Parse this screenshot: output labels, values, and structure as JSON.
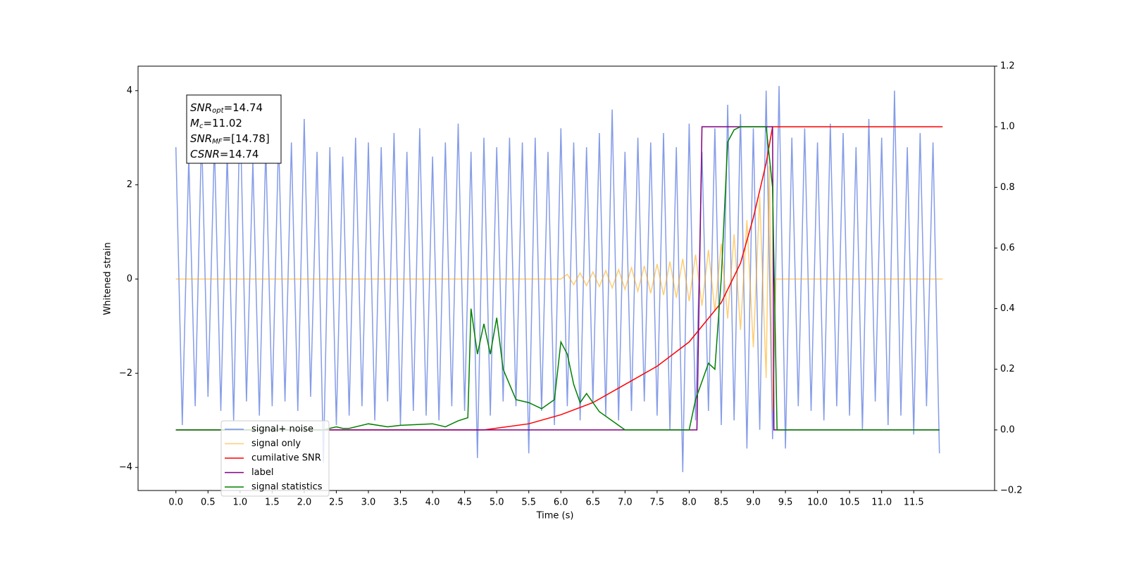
{
  "chart_data": {
    "type": "line",
    "xlabel": "Time (s)",
    "ylabel": "Whitened strain",
    "xlim": [
      -0.59,
      12.76
    ],
    "ylim": [
      -4.49,
      4.52
    ],
    "y2lim": [
      -0.2,
      1.2
    ],
    "xticks": [
      {
        "value": 0,
        "label": "0.0"
      },
      {
        "value": 0.5,
        "label": "0.5"
      },
      {
        "value": 1,
        "label": "1.0"
      },
      {
        "value": 1.5,
        "label": "1.5"
      },
      {
        "value": 2,
        "label": "2.0"
      },
      {
        "value": 2.5,
        "label": "2.5"
      },
      {
        "value": 3,
        "label": "3.0"
      },
      {
        "value": 3.5,
        "label": "3.5"
      },
      {
        "value": 4,
        "label": "4.0"
      },
      {
        "value": 4.5,
        "label": "4.5"
      },
      {
        "value": 5,
        "label": "5.0"
      },
      {
        "value": 5.5,
        "label": "5.5"
      },
      {
        "value": 6,
        "label": "6.0"
      },
      {
        "value": 6.5,
        "label": "6.5"
      },
      {
        "value": 7,
        "label": "7.0"
      },
      {
        "value": 7.5,
        "label": "7.5"
      },
      {
        "value": 8,
        "label": "8.0"
      },
      {
        "value": 8.5,
        "label": "8.5"
      },
      {
        "value": 9,
        "label": "9.0"
      },
      {
        "value": 9.5,
        "label": "9.5"
      },
      {
        "value": 10,
        "label": "10.0"
      },
      {
        "value": 10.5,
        "label": "10.5"
      },
      {
        "value": 11,
        "label": "11.0"
      },
      {
        "value": 11.5,
        "label": "11.5"
      }
    ],
    "yticks": [
      {
        "value": -4,
        "label": "−4"
      },
      {
        "value": -2,
        "label": "−2"
      },
      0,
      2,
      4
    ],
    "y2ticks": [
      {
        "value": -0.2,
        "label": "−0.2"
      },
      {
        "value": 0,
        "label": "0.0"
      },
      {
        "value": 0.2,
        "label": "0.2"
      },
      {
        "value": 0.4,
        "label": "0.4"
      },
      {
        "value": 0.6,
        "label": "0.6"
      },
      {
        "value": 0.8,
        "label": "0.8"
      },
      {
        "value": 1,
        "label": "1.0"
      },
      {
        "value": 1.2,
        "label": "1.2"
      }
    ],
    "annotation": [
      {
        "symbol": "SNR",
        "sub": "opt",
        "text": "=14.74"
      },
      {
        "symbol": "M",
        "sub": "c",
        "text": "=11.02"
      },
      {
        "symbol": "SNR",
        "sub": "MF",
        "text": "=[14.78]"
      },
      {
        "symbol": "CSNR",
        "text": "=14.74"
      }
    ],
    "legend": true,
    "series": [
      {
        "name": "signal+ noise",
        "color": "#7891e6",
        "axis": "y",
        "x": [
          0,
          0.1,
          0.2,
          0.3,
          0.4,
          0.5,
          0.6,
          0.7,
          0.8,
          0.9,
          1,
          1.1,
          1.2,
          1.3,
          1.4,
          1.5,
          1.6,
          1.7,
          1.8,
          1.9,
          2,
          2.1,
          2.2,
          2.3,
          2.4,
          2.5,
          2.6,
          2.7,
          2.8,
          2.9,
          3,
          3.1,
          3.2,
          3.3,
          3.4,
          3.5,
          3.6,
          3.7,
          3.8,
          3.9,
          4,
          4.1,
          4.2,
          4.3,
          4.4,
          4.5,
          4.6,
          4.7,
          4.8,
          4.9,
          5,
          5.1,
          5.2,
          5.3,
          5.4,
          5.5,
          5.6,
          5.7,
          5.8,
          5.9,
          6,
          6.1,
          6.2,
          6.3,
          6.4,
          6.5,
          6.6,
          6.7,
          6.8,
          6.9,
          7,
          7.1,
          7.2,
          7.3,
          7.4,
          7.5,
          7.6,
          7.7,
          7.8,
          7.9,
          8,
          8.1,
          8.2,
          8.3,
          8.4,
          8.5,
          8.6,
          8.7,
          8.8,
          8.9,
          9,
          9.1,
          9.2,
          9.3,
          9.4,
          9.5,
          9.6,
          9.7,
          9.8,
          9.9,
          10,
          10.1,
          10.2,
          10.3,
          10.4,
          10.5,
          10.6,
          10.7,
          10.8,
          10.9,
          11,
          11.1,
          11.2,
          11.3,
          11.4,
          11.5,
          11.6,
          11.7,
          11.8,
          11.9
        ],
        "values": [
          2.8,
          -3.1,
          2.6,
          -2.7,
          3.1,
          -2.5,
          2.9,
          -2.8,
          2.7,
          -3,
          3.7,
          -2.6,
          2.5,
          -2.9,
          2.8,
          -2.7,
          3,
          -2.6,
          2.9,
          -2.8,
          3.4,
          -2.5,
          2.7,
          -3.9,
          2.8,
          -3.1,
          2.6,
          -2.9,
          3,
          -2.7,
          2.9,
          -3,
          2.8,
          -2.6,
          3.1,
          -3.1,
          2.7,
          -2.8,
          3.2,
          -2.9,
          2.6,
          -3,
          2.9,
          -2.7,
          3.3,
          -2.8,
          2.7,
          -3.8,
          3,
          -2.9,
          2.8,
          -2.6,
          3,
          -2.7,
          2.9,
          -3.7,
          3,
          -2.8,
          2.7,
          -3.1,
          3.2,
          -2.7,
          2.9,
          -3,
          2.8,
          -2.6,
          3.1,
          -2.9,
          3.6,
          -3,
          2.7,
          -2.8,
          3,
          -2.6,
          2.9,
          -2.9,
          3.1,
          -3.2,
          2.8,
          -4.1,
          3.3,
          -3,
          2.7,
          -2.8,
          3.2,
          -3.1,
          3.7,
          -3,
          3.5,
          -3.6,
          3.2,
          -3.2,
          4,
          -3.4,
          4.1,
          -3.6,
          3,
          -2.7,
          3.2,
          -2.8,
          2.9,
          -3,
          3.3,
          -2.7,
          3.1,
          -2.9,
          2.8,
          -3.2,
          3.4,
          -2.6,
          3,
          -3.1,
          4,
          -2.9,
          2.8,
          -3.3,
          3.1,
          -2.7,
          2.9,
          -3.7
        ]
      },
      {
        "name": "signal only",
        "color": "#ffa500",
        "axis": "y",
        "x": [
          0,
          6,
          6.1,
          6.2,
          6.3,
          6.4,
          6.5,
          6.6,
          6.7,
          6.8,
          6.9,
          7,
          7.1,
          7.2,
          7.3,
          7.4,
          7.5,
          7.6,
          7.7,
          7.8,
          7.9,
          8,
          8.1,
          8.2,
          8.3,
          8.4,
          8.5,
          8.6,
          8.7,
          8.8,
          8.9,
          9,
          9.1,
          9.2,
          9.25,
          9.3,
          9.35,
          11.95
        ],
        "values": [
          0,
          0,
          0.1,
          -0.12,
          0.13,
          -0.14,
          0.15,
          -0.16,
          0.18,
          -0.19,
          0.2,
          -0.22,
          0.24,
          -0.26,
          0.28,
          -0.3,
          0.32,
          -0.34,
          0.37,
          -0.4,
          0.43,
          -0.47,
          0.52,
          -0.57,
          0.62,
          -0.68,
          0.75,
          -0.84,
          0.95,
          -1.08,
          1.25,
          -1.45,
          1.75,
          -2.1,
          2.4,
          -2.8,
          0,
          0
        ]
      },
      {
        "name": "cumilative SNR",
        "color": "#ff0000",
        "axis": "y2",
        "x": [
          0,
          4.8,
          5.5,
          6,
          6.5,
          7,
          7.5,
          8,
          8.5,
          8.8,
          9,
          9.2,
          9.3,
          11.95
        ],
        "values": [
          0,
          0,
          0.02,
          0.05,
          0.09,
          0.15,
          0.21,
          0.29,
          0.42,
          0.55,
          0.7,
          0.88,
          1,
          1
        ]
      },
      {
        "name": "label",
        "color": "#800080",
        "axis": "y2",
        "x": [
          0,
          8.12,
          8.2,
          9.3,
          9.32,
          11.9
        ],
        "values": [
          0,
          0,
          1,
          1,
          0,
          0
        ]
      },
      {
        "name": "signal statistics",
        "color": "#008000",
        "axis": "y2",
        "x": [
          0,
          2.3,
          2.5,
          2.6,
          2.7,
          3,
          3.3,
          3.5,
          4,
          4.2,
          4.4,
          4.55,
          4.6,
          4.7,
          4.8,
          4.9,
          5,
          5.1,
          5.3,
          5.5,
          5.7,
          5.9,
          6,
          6.1,
          6.2,
          6.3,
          6.4,
          6.6,
          7,
          7.5,
          8,
          8.1,
          8.3,
          8.4,
          8.5,
          8.6,
          8.7,
          8.8,
          9.2,
          9.3,
          9.37,
          11.9
        ],
        "values": [
          0,
          0,
          0.01,
          0.005,
          0.005,
          0.02,
          0.01,
          0.015,
          0.02,
          0.01,
          0.03,
          0.04,
          0.4,
          0.25,
          0.35,
          0.25,
          0.37,
          0.2,
          0.1,
          0.09,
          0.07,
          0.1,
          0.29,
          0.25,
          0.15,
          0.09,
          0.12,
          0.06,
          0,
          0,
          0,
          0.1,
          0.22,
          0.2,
          0.5,
          0.95,
          0.99,
          1,
          1,
          0.8,
          0,
          0
        ]
      }
    ]
  }
}
